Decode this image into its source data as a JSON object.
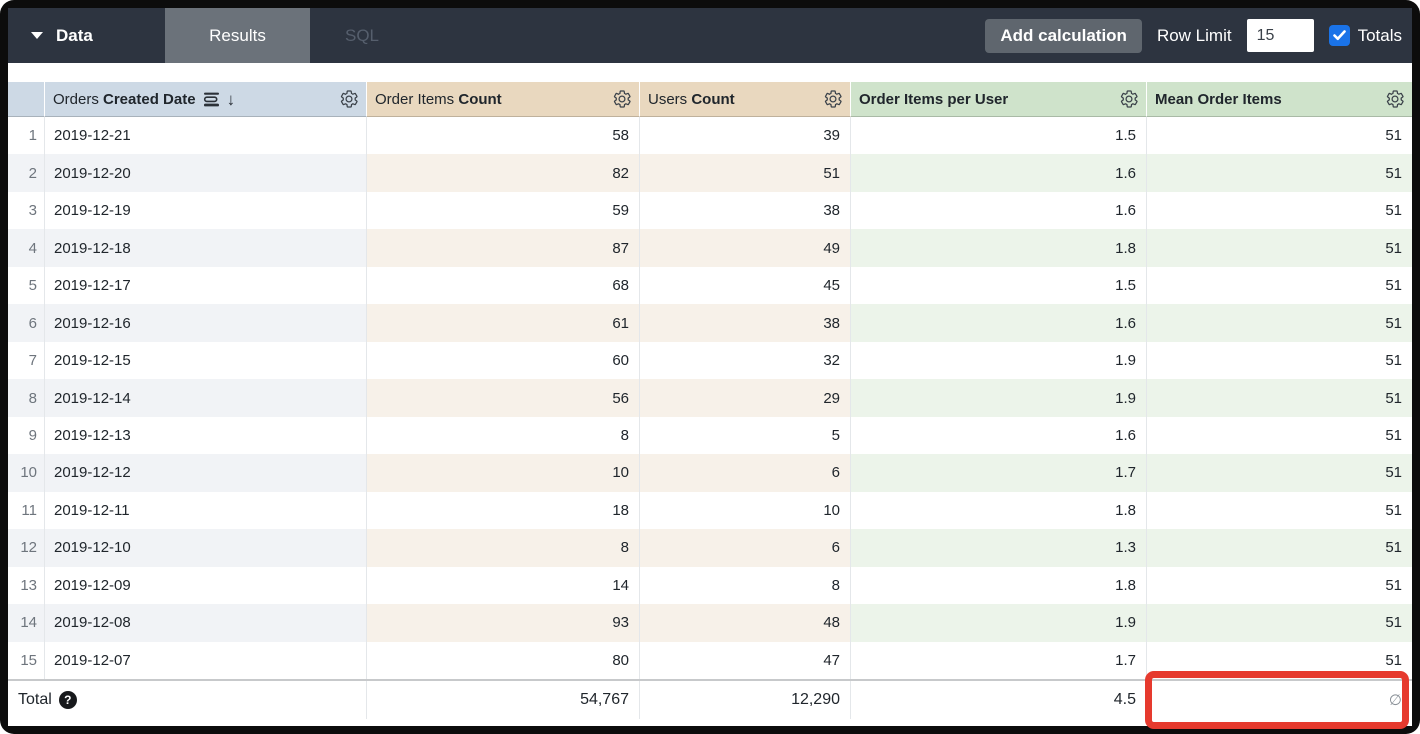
{
  "topbar": {
    "data_label": "Data",
    "tabs": {
      "results": "Results",
      "sql": "SQL"
    },
    "active_tab": "Results",
    "add_calculation_label": "Add calculation",
    "row_limit_label": "Row Limit",
    "row_limit_value": "15",
    "totals_label": "Totals",
    "totals_checked": true
  },
  "table": {
    "columns": [
      {
        "view": "Orders ",
        "field": "Created Date",
        "type": "dimension",
        "sorted": "descending",
        "header_bg": "#cdd9e5"
      },
      {
        "view": "Order Items ",
        "field": "Count",
        "type": "measure",
        "header_bg": "#e9d8bf"
      },
      {
        "view": "Users ",
        "field": "Count",
        "type": "measure",
        "header_bg": "#e9d8bf"
      },
      {
        "view": "",
        "field": "Order Items per User",
        "type": "table_calculation",
        "header_bg": "#cfe3cb"
      },
      {
        "view": "",
        "field": "Mean Order Items",
        "type": "table_calculation",
        "header_bg": "#cfe3cb"
      }
    ],
    "rows": [
      {
        "num": "1",
        "date": "2019-12-21",
        "order_items_count": "58",
        "users_count": "39",
        "order_items_per_user": "1.5",
        "mean_order_items": "51"
      },
      {
        "num": "2",
        "date": "2019-12-20",
        "order_items_count": "82",
        "users_count": "51",
        "order_items_per_user": "1.6",
        "mean_order_items": "51"
      },
      {
        "num": "3",
        "date": "2019-12-19",
        "order_items_count": "59",
        "users_count": "38",
        "order_items_per_user": "1.6",
        "mean_order_items": "51"
      },
      {
        "num": "4",
        "date": "2019-12-18",
        "order_items_count": "87",
        "users_count": "49",
        "order_items_per_user": "1.8",
        "mean_order_items": "51"
      },
      {
        "num": "5",
        "date": "2019-12-17",
        "order_items_count": "68",
        "users_count": "45",
        "order_items_per_user": "1.5",
        "mean_order_items": "51"
      },
      {
        "num": "6",
        "date": "2019-12-16",
        "order_items_count": "61",
        "users_count": "38",
        "order_items_per_user": "1.6",
        "mean_order_items": "51"
      },
      {
        "num": "7",
        "date": "2019-12-15",
        "order_items_count": "60",
        "users_count": "32",
        "order_items_per_user": "1.9",
        "mean_order_items": "51"
      },
      {
        "num": "8",
        "date": "2019-12-14",
        "order_items_count": "56",
        "users_count": "29",
        "order_items_per_user": "1.9",
        "mean_order_items": "51"
      },
      {
        "num": "9",
        "date": "2019-12-13",
        "order_items_count": "8",
        "users_count": "5",
        "order_items_per_user": "1.6",
        "mean_order_items": "51"
      },
      {
        "num": "10",
        "date": "2019-12-12",
        "order_items_count": "10",
        "users_count": "6",
        "order_items_per_user": "1.7",
        "mean_order_items": "51"
      },
      {
        "num": "11",
        "date": "2019-12-11",
        "order_items_count": "18",
        "users_count": "10",
        "order_items_per_user": "1.8",
        "mean_order_items": "51"
      },
      {
        "num": "12",
        "date": "2019-12-10",
        "order_items_count": "8",
        "users_count": "6",
        "order_items_per_user": "1.3",
        "mean_order_items": "51"
      },
      {
        "num": "13",
        "date": "2019-12-09",
        "order_items_count": "14",
        "users_count": "8",
        "order_items_per_user": "1.8",
        "mean_order_items": "51"
      },
      {
        "num": "14",
        "date": "2019-12-08",
        "order_items_count": "93",
        "users_count": "48",
        "order_items_per_user": "1.9",
        "mean_order_items": "51"
      },
      {
        "num": "15",
        "date": "2019-12-07",
        "order_items_count": "80",
        "users_count": "47",
        "order_items_per_user": "1.7",
        "mean_order_items": "51"
      }
    ],
    "total": {
      "label": "Total",
      "help_glyph": "?",
      "order_items_count": "54,767",
      "users_count": "12,290",
      "order_items_per_user": "4.5",
      "mean_order_items": "∅"
    }
  },
  "annotation": {
    "shape": "red-rectangle-highlight",
    "target": "total-mean-order-items-cell",
    "color": "#e63a2e"
  },
  "colors": {
    "topbar_bg": "#2d3440",
    "active_tab_bg": "#6b727a",
    "dimension_header_bg": "#cdd9e5",
    "measure_header_bg": "#e9d8bf",
    "table_calc_header_bg": "#cfe3cb",
    "dimension_stripe": "#f1f3f6",
    "measure_stripe": "#f7f1e9",
    "table_calc_stripe": "#ecf4ea",
    "checkbox_blue": "#1a73e8",
    "annotation_red": "#e63a2e"
  }
}
